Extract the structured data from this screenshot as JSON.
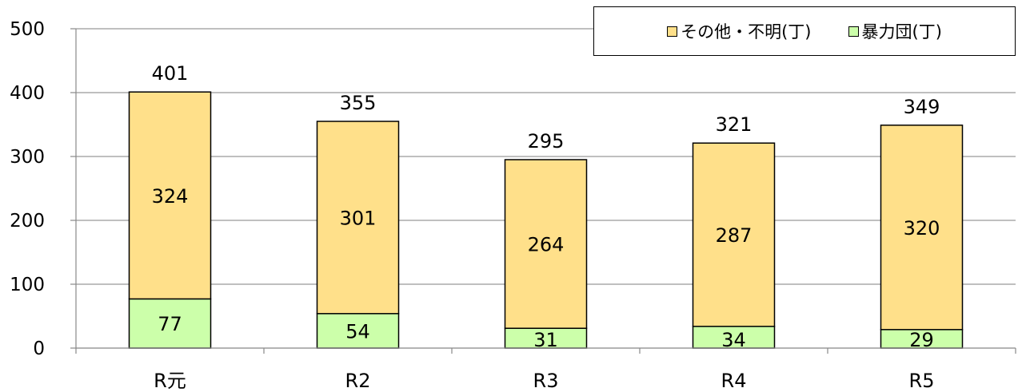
{
  "chart_data": {
    "type": "bar",
    "stacked": true,
    "categories": [
      "R元",
      "R2",
      "R3",
      "R4",
      "R5"
    ],
    "series": [
      {
        "name": "暴力団(丁)",
        "values": [
          77,
          54,
          31,
          34,
          29
        ],
        "color": "#ccffaa"
      },
      {
        "name": "その他・不明(丁)",
        "values": [
          324,
          301,
          264,
          287,
          320
        ],
        "color": "#ffe08a"
      }
    ],
    "totals": [
      401,
      355,
      295,
      321,
      349
    ],
    "ylim": [
      0,
      500
    ],
    "yticks": [
      "0",
      "100",
      "200",
      "300",
      "400",
      "500"
    ],
    "grid": true,
    "legend_position": "top-right",
    "legend_order": [
      "その他・不明(丁)",
      "暴力団(丁)"
    ]
  }
}
